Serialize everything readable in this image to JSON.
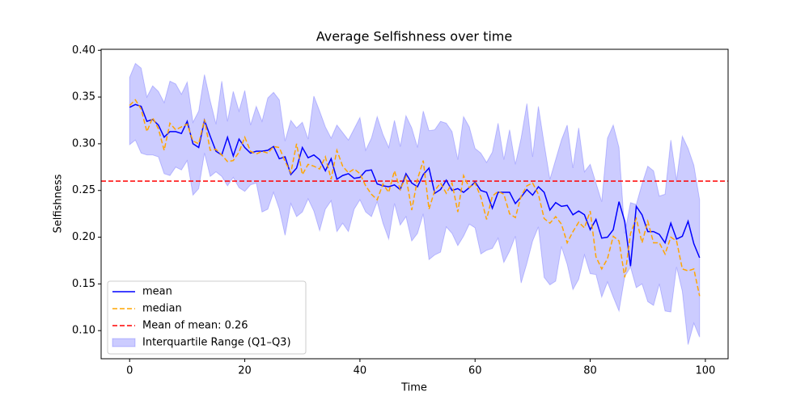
{
  "chart_data": {
    "type": "line",
    "title": "Average Selfishness over time",
    "x_label": "Time",
    "y_label": "Selfishness",
    "x": [
      0,
      1,
      2,
      3,
      4,
      5,
      6,
      7,
      8,
      9,
      10,
      11,
      12,
      13,
      14,
      15,
      16,
      17,
      18,
      19,
      20,
      21,
      22,
      23,
      24,
      25,
      26,
      27,
      28,
      29,
      30,
      31,
      32,
      33,
      34,
      35,
      36,
      37,
      38,
      39,
      40,
      41,
      42,
      43,
      44,
      45,
      46,
      47,
      48,
      49,
      50,
      51,
      52,
      53,
      54,
      55,
      56,
      57,
      58,
      59,
      60,
      61,
      62,
      63,
      64,
      65,
      66,
      67,
      68,
      69,
      70,
      71,
      72,
      73,
      74,
      75,
      76,
      77,
      78,
      79,
      80,
      81,
      82,
      83,
      84,
      85,
      86,
      87,
      88,
      89,
      90,
      91,
      92,
      93,
      94,
      95,
      96,
      97,
      98,
      99
    ],
    "series": [
      {
        "name": "mean",
        "color": "#0000ff",
        "linestyle": "solid",
        "values": [
          0.339,
          0.342,
          0.34,
          0.324,
          0.326,
          0.32,
          0.307,
          0.313,
          0.313,
          0.311,
          0.324,
          0.3,
          0.296,
          0.325,
          0.308,
          0.292,
          0.288,
          0.307,
          0.287,
          0.305,
          0.296,
          0.29,
          0.292,
          0.292,
          0.293,
          0.297,
          0.284,
          0.286,
          0.267,
          0.274,
          0.296,
          0.285,
          0.288,
          0.283,
          0.271,
          0.284,
          0.262,
          0.266,
          0.268,
          0.263,
          0.264,
          0.271,
          0.272,
          0.257,
          0.255,
          0.254,
          0.256,
          0.251,
          0.268,
          0.258,
          0.254,
          0.267,
          0.274,
          0.247,
          0.251,
          0.261,
          0.25,
          0.252,
          0.248,
          0.253,
          0.259,
          0.25,
          0.248,
          0.231,
          0.248,
          0.248,
          0.248,
          0.236,
          0.243,
          0.251,
          0.245,
          0.254,
          0.248,
          0.229,
          0.237,
          0.233,
          0.234,
          0.224,
          0.228,
          0.224,
          0.208,
          0.219,
          0.199,
          0.2,
          0.208,
          0.238,
          0.217,
          0.169,
          0.233,
          0.224,
          0.206,
          0.206,
          0.203,
          0.194,
          0.215,
          0.198,
          0.201,
          0.217,
          0.193,
          0.178
        ]
      },
      {
        "name": "median",
        "color": "#ffa500",
        "linestyle": "dashed",
        "values": [
          0.341,
          0.347,
          0.337,
          0.313,
          0.328,
          0.316,
          0.293,
          0.322,
          0.315,
          0.318,
          0.321,
          0.303,
          0.3,
          0.326,
          0.293,
          0.294,
          0.288,
          0.281,
          0.282,
          0.291,
          0.307,
          0.292,
          0.289,
          0.292,
          0.29,
          0.297,
          0.296,
          0.281,
          0.269,
          0.3,
          0.267,
          0.278,
          0.276,
          0.273,
          0.286,
          0.262,
          0.293,
          0.276,
          0.269,
          0.273,
          0.268,
          0.255,
          0.246,
          0.24,
          0.257,
          0.248,
          0.271,
          0.251,
          0.265,
          0.229,
          0.262,
          0.282,
          0.23,
          0.25,
          0.258,
          0.247,
          0.258,
          0.227,
          0.266,
          0.253,
          0.258,
          0.243,
          0.219,
          0.244,
          0.249,
          0.246,
          0.225,
          0.221,
          0.244,
          0.255,
          0.258,
          0.246,
          0.22,
          0.215,
          0.222,
          0.214,
          0.194,
          0.206,
          0.216,
          0.21,
          0.228,
          0.179,
          0.166,
          0.177,
          0.201,
          0.196,
          0.157,
          0.204,
          0.22,
          0.194,
          0.217,
          0.194,
          0.194,
          0.182,
          0.2,
          0.196,
          0.166,
          0.164,
          0.166,
          0.137
        ]
      }
    ],
    "hline": {
      "name": "Mean of mean: 0.26",
      "value": 0.26,
      "color": "#ff0000",
      "linestyle": "dashed"
    },
    "band": {
      "name": "Interquartile Range (Q1–Q3)",
      "color": "#0000ff",
      "alpha": 0.2,
      "upper": [
        0.371,
        0.386,
        0.381,
        0.35,
        0.362,
        0.356,
        0.344,
        0.367,
        0.364,
        0.353,
        0.366,
        0.323,
        0.335,
        0.374,
        0.346,
        0.321,
        0.367,
        0.324,
        0.356,
        0.335,
        0.357,
        0.32,
        0.34,
        0.324,
        0.349,
        0.355,
        0.347,
        0.303,
        0.325,
        0.317,
        0.323,
        0.305,
        0.351,
        0.335,
        0.318,
        0.306,
        0.32,
        0.312,
        0.304,
        0.316,
        0.328,
        0.293,
        0.306,
        0.329,
        0.31,
        0.296,
        0.325,
        0.297,
        0.33,
        0.317,
        0.296,
        0.335,
        0.314,
        0.315,
        0.324,
        0.322,
        0.313,
        0.283,
        0.329,
        0.318,
        0.295,
        0.29,
        0.28,
        0.291,
        0.322,
        0.283,
        0.315,
        0.278,
        0.306,
        0.343,
        0.286,
        0.34,
        0.3,
        0.262,
        0.283,
        0.304,
        0.32,
        0.274,
        0.317,
        0.27,
        0.278,
        0.258,
        0.238,
        0.306,
        0.32,
        0.296,
        0.204,
        0.237,
        0.235,
        0.257,
        0.276,
        0.271,
        0.244,
        0.246,
        0.304,
        0.261,
        0.308,
        0.295,
        0.277,
        0.24
      ],
      "lower": [
        0.299,
        0.304,
        0.29,
        0.288,
        0.288,
        0.286,
        0.268,
        0.266,
        0.275,
        0.272,
        0.282,
        0.245,
        0.252,
        0.29,
        0.265,
        0.27,
        0.265,
        0.255,
        0.264,
        0.253,
        0.249,
        0.256,
        0.258,
        0.227,
        0.23,
        0.248,
        0.23,
        0.202,
        0.236,
        0.222,
        0.227,
        0.241,
        0.228,
        0.207,
        0.23,
        0.239,
        0.206,
        0.215,
        0.206,
        0.23,
        0.24,
        0.227,
        0.222,
        0.238,
        0.215,
        0.198,
        0.236,
        0.213,
        0.222,
        0.196,
        0.204,
        0.225,
        0.176,
        0.181,
        0.184,
        0.211,
        0.204,
        0.191,
        0.201,
        0.214,
        0.21,
        0.182,
        0.186,
        0.188,
        0.199,
        0.173,
        0.185,
        0.201,
        0.151,
        0.172,
        0.196,
        0.211,
        0.157,
        0.149,
        0.153,
        0.19,
        0.171,
        0.144,
        0.155,
        0.181,
        0.161,
        0.16,
        0.136,
        0.152,
        0.136,
        0.121,
        0.158,
        0.168,
        0.146,
        0.15,
        0.131,
        0.127,
        0.15,
        0.121,
        0.12,
        0.168,
        0.142,
        0.085,
        0.108,
        0.093
      ]
    },
    "xlim": [
      -4.95,
      103.95
    ],
    "ylim": [
      0.0699,
      0.4011
    ],
    "xticks": [
      0,
      20,
      40,
      60,
      80,
      100
    ],
    "yticks": [
      {
        "value": 0.1,
        "label": "0.10"
      },
      {
        "value": 0.15,
        "label": "0.15"
      },
      {
        "value": 0.2,
        "label": "0.20"
      },
      {
        "value": 0.25,
        "label": "0.25"
      },
      {
        "value": 0.3,
        "label": "0.30"
      },
      {
        "value": 0.35,
        "label": "0.35"
      },
      {
        "value": 0.4,
        "label": "0.40"
      }
    ],
    "grid": false,
    "legend": "lower left"
  }
}
